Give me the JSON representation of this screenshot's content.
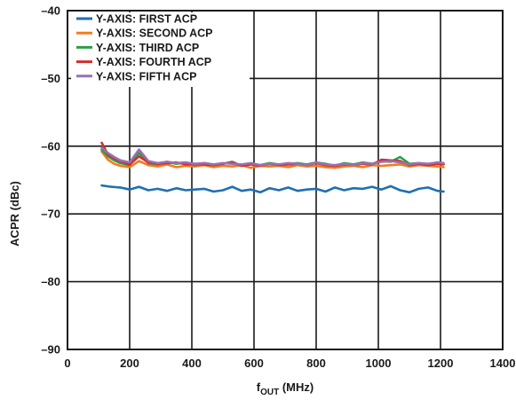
{
  "chart_data": {
    "type": "line",
    "title": "",
    "xlabel": {
      "main": "f",
      "sub": "OUT",
      "unit": " (MHz)"
    },
    "ylabel": "ACPR (dBc)",
    "xlim": [
      0,
      1400
    ],
    "ylim": [
      -90,
      -40
    ],
    "xticks": [
      0,
      200,
      400,
      600,
      800,
      1000,
      1200,
      1400
    ],
    "yticks": [
      -40,
      -50,
      -60,
      -70,
      -80,
      -90
    ],
    "xtick_labels": [
      "0",
      "200",
      "400",
      "600",
      "800",
      "1000",
      "1200",
      "1400"
    ],
    "ytick_labels": [
      "–40",
      "–50",
      "–60",
      "–70",
      "–80",
      "–90"
    ],
    "grid": true,
    "legend_position": "top-left",
    "series": [
      {
        "name": "Y-AXIS: FIRST ACP",
        "color": "#1f6fb2",
        "x": [
          110,
          140,
          170,
          200,
          230,
          260,
          290,
          320,
          350,
          380,
          410,
          440,
          470,
          500,
          530,
          560,
          590,
          620,
          650,
          680,
          710,
          740,
          770,
          800,
          830,
          860,
          890,
          920,
          950,
          980,
          1010,
          1040,
          1070,
          1100,
          1130,
          1160,
          1190,
          1210
        ],
        "y": [
          -65.8,
          -66.0,
          -66.1,
          -66.4,
          -66.0,
          -66.5,
          -66.3,
          -66.6,
          -66.2,
          -66.5,
          -66.4,
          -66.3,
          -66.7,
          -66.5,
          -66.0,
          -66.6,
          -66.4,
          -66.8,
          -66.2,
          -66.5,
          -66.1,
          -66.6,
          -66.4,
          -66.3,
          -66.7,
          -66.1,
          -66.5,
          -66.2,
          -66.3,
          -66.0,
          -66.4,
          -65.9,
          -66.5,
          -66.8,
          -66.3,
          -66.1,
          -66.6,
          -66.7
        ]
      },
      {
        "name": "Y-AXIS: SECOND ACP",
        "color": "#f07d1c",
        "x": [
          110,
          130,
          150,
          170,
          200,
          230,
          260,
          290,
          320,
          350,
          380,
          410,
          440,
          470,
          500,
          530,
          560,
          590,
          620,
          650,
          680,
          710,
          740,
          770,
          800,
          830,
          860,
          890,
          920,
          950,
          980,
          1010,
          1040,
          1070,
          1100,
          1130,
          1160,
          1190,
          1210
        ],
        "y": [
          -60.8,
          -62.0,
          -62.6,
          -62.9,
          -63.1,
          -62.2,
          -62.8,
          -63.0,
          -62.7,
          -63.1,
          -62.9,
          -63.0,
          -62.8,
          -63.1,
          -62.9,
          -63.0,
          -62.8,
          -63.2,
          -62.9,
          -63.0,
          -62.9,
          -63.1,
          -62.8,
          -63.0,
          -62.9,
          -63.1,
          -63.2,
          -63.0,
          -62.9,
          -63.1,
          -62.8,
          -62.9,
          -62.8,
          -62.7,
          -63.0,
          -62.8,
          -62.9,
          -63.0,
          -63.1
        ]
      },
      {
        "name": "Y-AXIS: THIRD ACP",
        "color": "#2d9e46",
        "x": [
          110,
          130,
          150,
          170,
          200,
          230,
          260,
          290,
          320,
          350,
          380,
          410,
          440,
          470,
          500,
          530,
          560,
          590,
          620,
          650,
          680,
          710,
          740,
          770,
          800,
          830,
          860,
          890,
          920,
          950,
          980,
          1010,
          1040,
          1070,
          1100,
          1130,
          1160,
          1190,
          1210
        ],
        "y": [
          -60.5,
          -61.5,
          -62.1,
          -62.5,
          -62.8,
          -61.0,
          -62.5,
          -62.7,
          -62.3,
          -62.6,
          -62.4,
          -62.8,
          -62.5,
          -62.7,
          -62.6,
          -62.3,
          -62.9,
          -62.6,
          -62.8,
          -62.5,
          -62.7,
          -62.6,
          -62.5,
          -62.7,
          -62.4,
          -62.6,
          -62.9,
          -62.5,
          -62.7,
          -62.4,
          -62.6,
          -62.2,
          -62.3,
          -61.6,
          -62.6,
          -62.5,
          -62.7,
          -62.4,
          -62.6
        ]
      },
      {
        "name": "Y-AXIS: FOURTH ACP",
        "color": "#d62c2c",
        "x": [
          110,
          130,
          150,
          170,
          200,
          230,
          260,
          290,
          320,
          350,
          380,
          410,
          440,
          470,
          500,
          530,
          560,
          590,
          620,
          650,
          680,
          710,
          740,
          770,
          800,
          830,
          860,
          890,
          920,
          950,
          980,
          1010,
          1040,
          1070,
          1100,
          1130,
          1160,
          1190,
          1210
        ],
        "y": [
          -59.5,
          -61.2,
          -61.8,
          -62.2,
          -62.7,
          -61.5,
          -62.4,
          -62.6,
          -62.5,
          -62.4,
          -62.7,
          -62.6,
          -62.7,
          -62.8,
          -62.6,
          -62.4,
          -62.9,
          -62.7,
          -62.9,
          -62.6,
          -62.8,
          -62.7,
          -62.6,
          -62.8,
          -62.5,
          -62.8,
          -62.9,
          -62.7,
          -62.8,
          -62.6,
          -62.7,
          -62.0,
          -62.1,
          -62.2,
          -62.8,
          -62.6,
          -62.8,
          -62.6,
          -62.7
        ]
      },
      {
        "name": "Y-AXIS: FIFTH ACP",
        "color": "#9b6fb4",
        "x": [
          110,
          130,
          150,
          170,
          200,
          230,
          260,
          290,
          320,
          350,
          380,
          410,
          440,
          470,
          500,
          530,
          560,
          590,
          620,
          650,
          680,
          710,
          740,
          770,
          800,
          830,
          860,
          890,
          920,
          950,
          980,
          1010,
          1040,
          1070,
          1100,
          1130,
          1160,
          1190,
          1210
        ],
        "y": [
          -60.2,
          -61.0,
          -61.6,
          -62.1,
          -62.4,
          -60.5,
          -62.2,
          -62.5,
          -62.3,
          -62.5,
          -62.4,
          -62.6,
          -62.5,
          -62.7,
          -62.5,
          -62.6,
          -62.7,
          -62.5,
          -62.8,
          -62.6,
          -62.7,
          -62.5,
          -62.6,
          -62.8,
          -62.4,
          -62.7,
          -62.8,
          -62.6,
          -62.8,
          -62.5,
          -62.6,
          -62.3,
          -62.2,
          -62.4,
          -62.7,
          -62.5,
          -62.6,
          -62.4,
          -62.5
        ]
      }
    ]
  }
}
